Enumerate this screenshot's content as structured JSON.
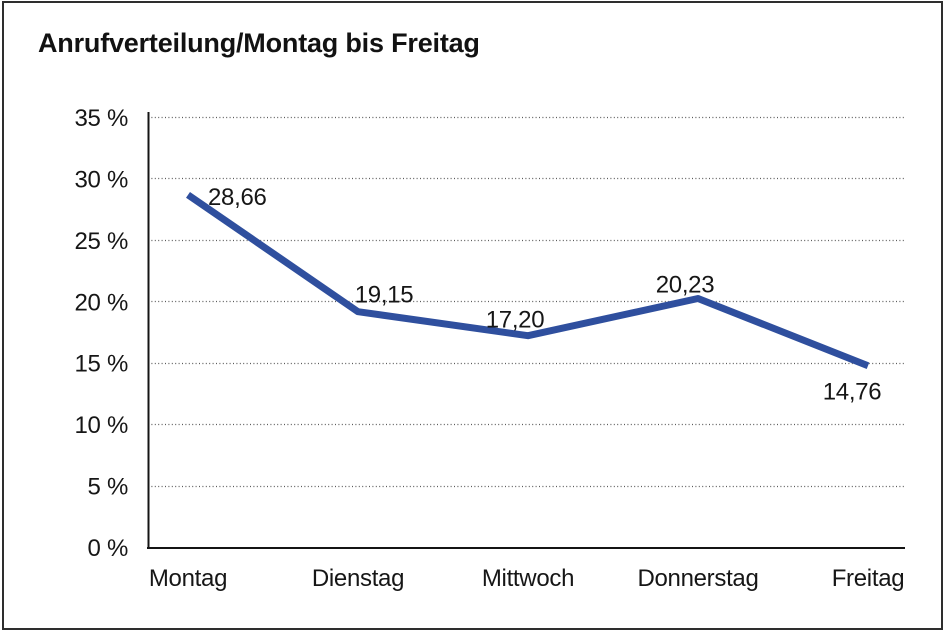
{
  "window": {
    "background_color": "#ffffff",
    "frame_color": "#2e2e2e"
  },
  "chart": {
    "title": "Anrufverteilung/Montag bis Freitag"
  },
  "chart_data": {
    "type": "line",
    "title": "Anrufverteilung/Montag bis Freitag",
    "categories": [
      "Montag",
      "Dienstag",
      "Mittwoch",
      "Donnerstag",
      "Freitag"
    ],
    "values": [
      28.66,
      19.15,
      17.2,
      20.23,
      14.76
    ],
    "value_labels": [
      "28,66",
      "19,15",
      "17,20",
      "20,23",
      "14,76"
    ],
    "xlabel": "",
    "ylabel": "",
    "ylim": [
      0,
      35
    ],
    "y_tick_step": 5,
    "y_tick_labels": [
      "0 %",
      "5 %",
      "10 %",
      "15 %",
      "20 %",
      "25 %",
      "30 %",
      "35 %"
    ],
    "grid": "horizontal-dotted",
    "legend": "none",
    "line_color": "#2f4f9e",
    "axis_color": "#141414",
    "text_color": "#161616"
  }
}
